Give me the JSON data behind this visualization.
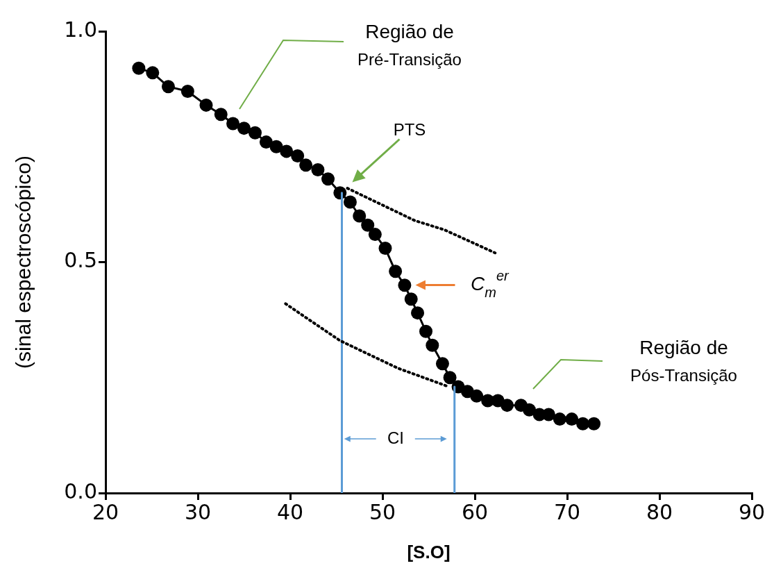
{
  "chart_data": {
    "type": "line",
    "xlabel": "[S.O]",
    "ylabel": "(sinal espectroscópico)",
    "xlim": [
      20,
      90
    ],
    "xticks": [
      20,
      30,
      40,
      50,
      60,
      70,
      80,
      90
    ],
    "ylim": [
      0,
      1.0
    ],
    "yticks": [
      {
        "value": 0,
        "label": "0.0"
      },
      {
        "value": 0.5,
        "label": "0.5"
      },
      {
        "value": 1.0,
        "label": "1.0"
      }
    ],
    "grid": false,
    "series": [
      {
        "color": "#000000",
        "marker": "circle",
        "x": [
          23.6,
          25.1,
          26.8,
          28.9,
          30.9,
          32.5,
          33.8,
          35.0,
          36.2,
          37.4,
          38.5,
          39.6,
          40.8,
          41.7,
          43.0,
          44.1,
          45.4,
          46.5,
          47.5,
          48.4,
          49.2,
          50.3,
          51.4,
          52.4,
          53.1,
          53.8,
          54.7,
          55.4,
          56.5,
          57.3,
          58.2,
          59.2,
          60.2,
          61.4,
          62.5,
          63.5,
          65.0,
          65.9,
          67.0,
          68.0,
          69.2,
          70.5,
          71.7,
          72.9
        ],
        "values": [
          0.92,
          0.91,
          0.88,
          0.87,
          0.84,
          0.82,
          0.8,
          0.79,
          0.78,
          0.76,
          0.75,
          0.74,
          0.73,
          0.71,
          0.7,
          0.68,
          0.65,
          0.63,
          0.6,
          0.58,
          0.56,
          0.53,
          0.48,
          0.45,
          0.42,
          0.39,
          0.35,
          0.32,
          0.28,
          0.25,
          0.23,
          0.22,
          0.21,
          0.2,
          0.2,
          0.19,
          0.19,
          0.18,
          0.17,
          0.17,
          0.16,
          0.16,
          0.15,
          0.15
        ]
      },
      {
        "color": "#000000",
        "marker": "none",
        "line_style": "dotted",
        "x": [
          46.2,
          53.5,
          56.7,
          62.2
        ],
        "values": [
          0.66,
          0.59,
          0.57,
          0.52
        ]
      },
      {
        "color": "#000000",
        "marker": "none",
        "line_style": "dotted",
        "x": [
          39.5,
          41.7,
          45.4,
          51.7,
          57.2
        ],
        "values": [
          0.41,
          0.38,
          0.33,
          0.27,
          0.23
        ]
      },
      {
        "color": "#5b9bd5",
        "marker": "none",
        "x": [
          45.6,
          45.6
        ],
        "values": [
          0,
          0.65
        ]
      },
      {
        "color": "#5b9bd5",
        "marker": "none",
        "x": [
          57.8,
          57.8
        ],
        "values": [
          0,
          0.23
        ]
      }
    ],
    "annotations": [
      "Região de Pré-Transição",
      "PTS",
      "C$_{m}$$^{er}$",
      "Região de Pós-Transição",
      "CI"
    ]
  }
}
